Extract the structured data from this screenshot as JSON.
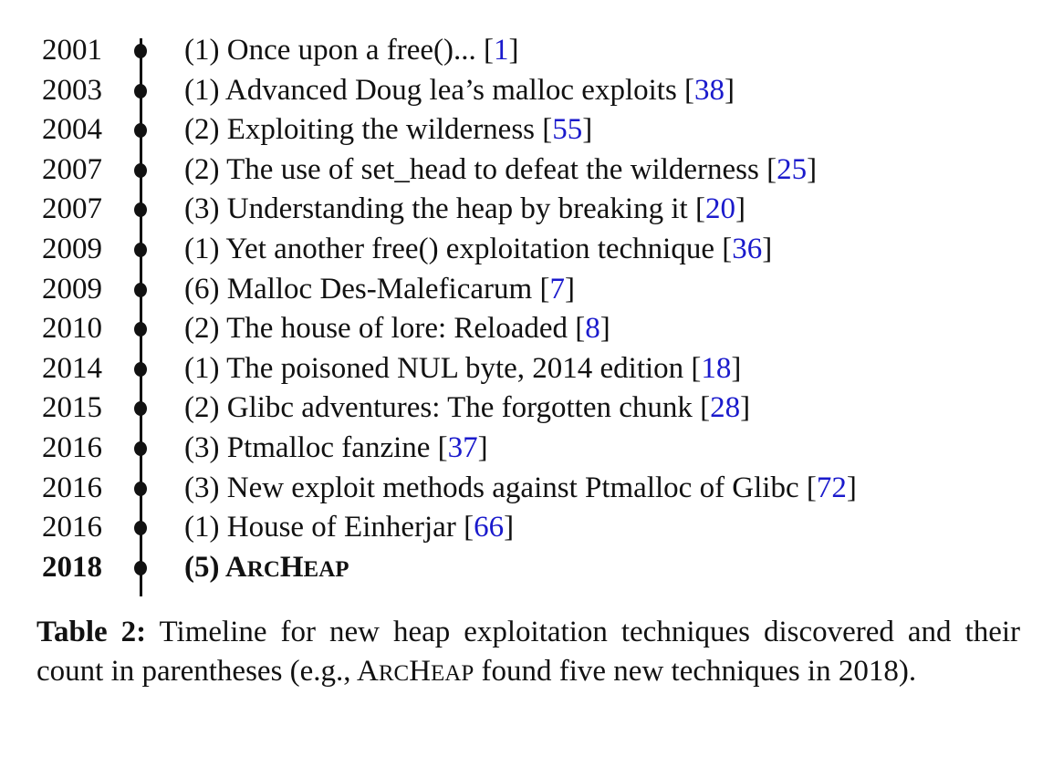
{
  "timeline": {
    "rows": [
      {
        "year": "2001",
        "count": "(1)",
        "title": "Once upon a free()...",
        "ref": "1"
      },
      {
        "year": "2003",
        "count": "(1)",
        "title": "Advanced Doug lea’s malloc exploits",
        "ref": "38"
      },
      {
        "year": "2004",
        "count": "(2)",
        "title": "Exploiting the wilderness",
        "ref": "55"
      },
      {
        "year": "2007",
        "count": "(2)",
        "title": "The use of set_head to defeat the wilderness",
        "ref": "25"
      },
      {
        "year": "2007",
        "count": "(3)",
        "title": "Understanding the heap by breaking it",
        "ref": "20"
      },
      {
        "year": "2009",
        "count": "(1)",
        "title": "Yet another free() exploitation technique",
        "ref": "36"
      },
      {
        "year": "2009",
        "count": "(6)",
        "title": "Malloc Des-Maleficarum",
        "ref": "7"
      },
      {
        "year": "2010",
        "count": "(2)",
        "title": "The house of lore: Reloaded",
        "ref": "8"
      },
      {
        "year": "2014",
        "count": "(1)",
        "title": "The poisoned NUL byte, 2014 edition",
        "ref": "18"
      },
      {
        "year": "2015",
        "count": "(2)",
        "title": "Glibc adventures: The forgotten chunk",
        "ref": "28"
      },
      {
        "year": "2016",
        "count": "(3)",
        "title": "Ptmalloc fanzine",
        "ref": "37"
      },
      {
        "year": "2016",
        "count": "(3)",
        "title": "New exploit methods against Ptmalloc of Glibc",
        "ref": "72"
      },
      {
        "year": "2016",
        "count": "(1)",
        "title": "House of Einherjar",
        "ref": "66"
      }
    ],
    "last": {
      "year": "2018",
      "count": "(5)",
      "title_sc": [
        "A",
        "RC",
        "H",
        "EAP"
      ]
    }
  },
  "caption": {
    "label": "Table 2:",
    "text_before": "Timeline for new heap exploitation techniques discovered and their count in parentheses (e.g., ",
    "sc": [
      "A",
      "RC",
      "H",
      "EAP"
    ],
    "text_after": " found five new techniques in 2018)."
  },
  "colors": {
    "citation": "#1a1acc",
    "text": "#111111"
  }
}
